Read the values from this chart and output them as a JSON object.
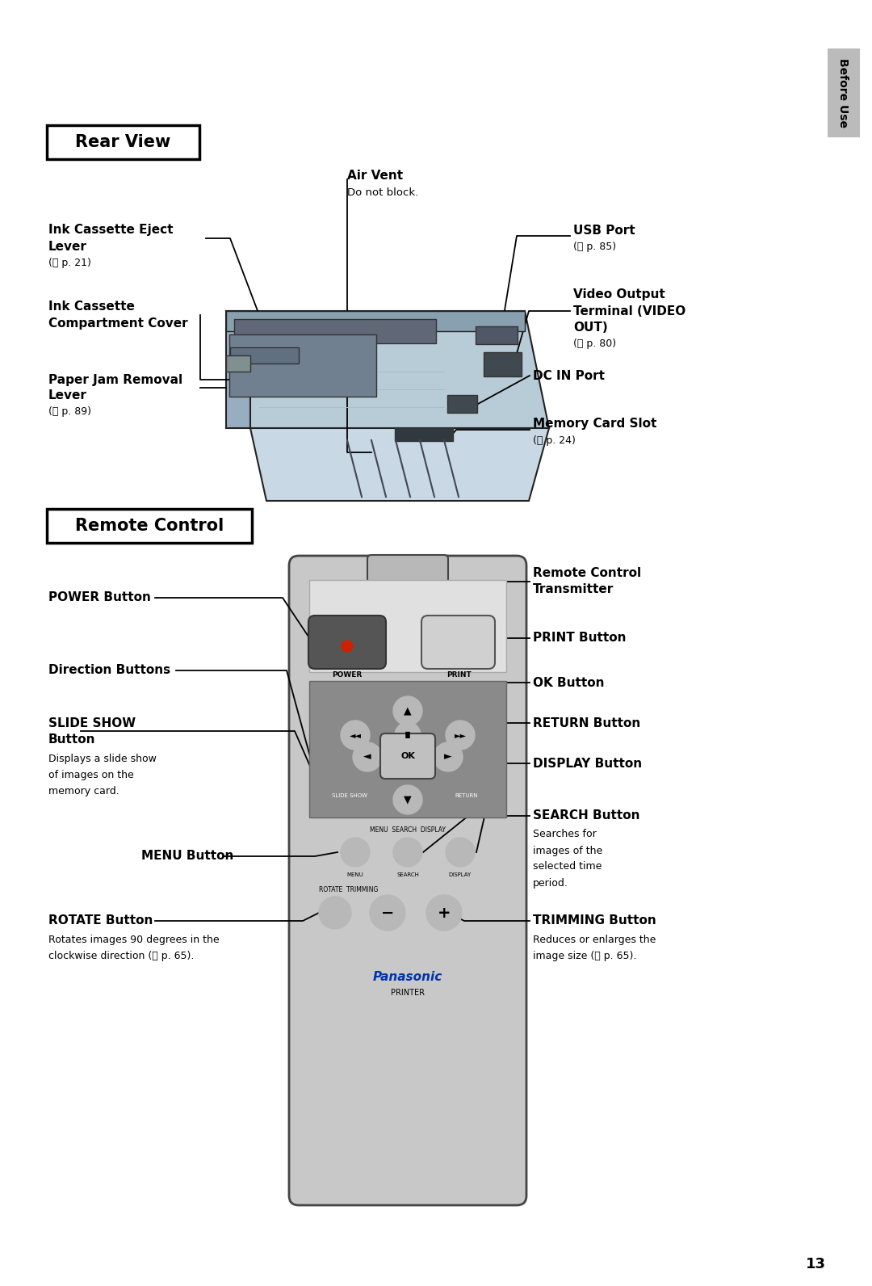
{
  "bg_color": "#ffffff",
  "page_number": "13",
  "figsize": [
    10.8,
    15.92
  ],
  "dpi": 100,
  "sidebar_color": "#bbbbbb",
  "sidebar_text": "Before Use",
  "section1_title": "Rear View",
  "section2_title": "Remote Control",
  "rc_body_color": "#c8c8c8",
  "rc_dark_area_color": "#8a8a8a",
  "rc_btn_light": "#d8d8d8",
  "rc_btn_dark": "#505050",
  "rc_top_area_color": "#e0e0e0",
  "panasonic_blue": "#0033aa"
}
